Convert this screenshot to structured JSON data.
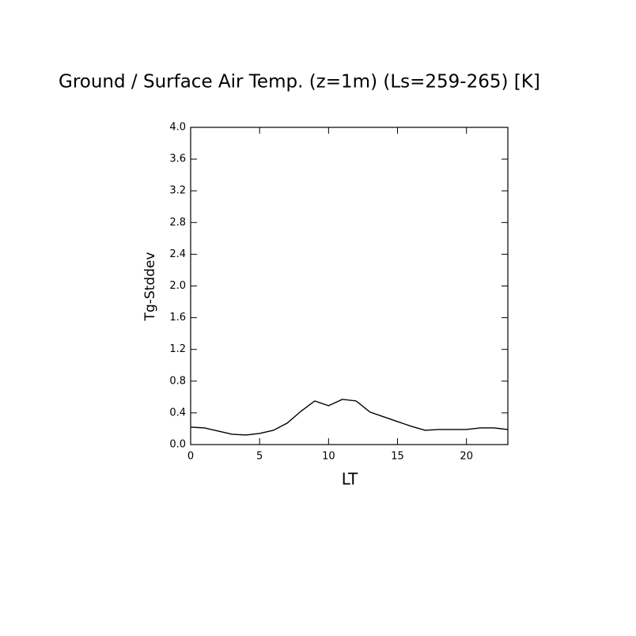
{
  "chart_data": {
    "type": "line",
    "title": "Ground / Surface Air Temp. (z=1m) (Ls=259-265) [K]",
    "x_label": "LT",
    "y_label": "Tg-Stddev",
    "x": [
      0,
      1,
      2,
      3,
      4,
      5,
      6,
      7,
      8,
      9,
      10,
      11,
      12,
      13,
      14,
      15,
      16,
      17,
      18,
      19,
      20,
      21,
      22,
      23
    ],
    "series": [
      {
        "color": "#000000",
        "values": [
          0.22,
          0.21,
          0.17,
          0.13,
          0.12,
          0.14,
          0.18,
          0.27,
          0.42,
          0.55,
          0.49,
          0.57,
          0.55,
          0.41,
          0.35,
          0.29,
          0.23,
          0.18,
          0.19,
          0.19,
          0.19,
          0.21,
          0.21,
          0.19
        ]
      }
    ],
    "xlim": [
      0,
      23
    ],
    "xticks": [
      0,
      5,
      10,
      15,
      20
    ],
    "ylim": [
      0,
      4
    ],
    "yticks": [
      {
        "value": 0,
        "label": "0.0"
      },
      0.4,
      0.8,
      1.2,
      1.6,
      {
        "value": 2,
        "label": "2.0"
      },
      2.4,
      2.8,
      3.2,
      3.6,
      {
        "value": 4,
        "label": "4.0"
      }
    ],
    "grid": false
  }
}
